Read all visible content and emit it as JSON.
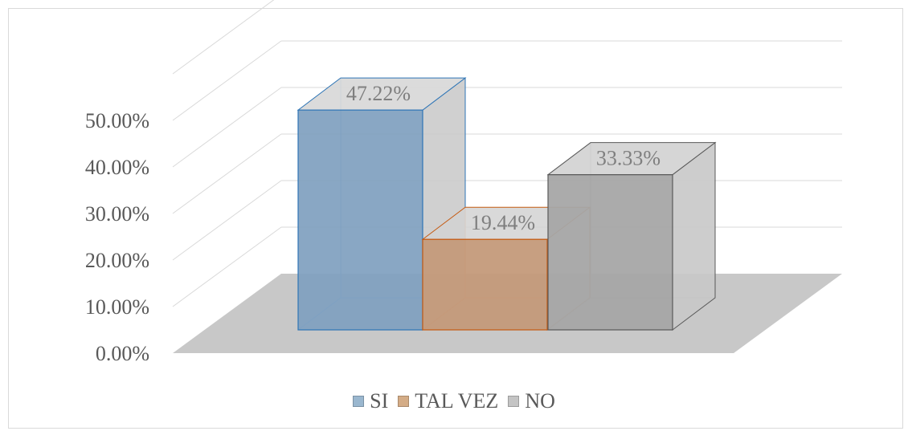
{
  "chart_data": {
    "type": "bar",
    "categories": [
      "SI",
      "TAL VEZ",
      "NO"
    ],
    "values": [
      47.22,
      19.44,
      33.33
    ],
    "data_labels": [
      "47.22%",
      "19.44%",
      "33.33%"
    ],
    "ytick_labels": [
      "0.00%",
      "10.00%",
      "20.00%",
      "30.00%",
      "40.00%",
      "50.00%"
    ],
    "ylim": [
      0,
      50
    ],
    "title": "",
    "xlabel": "",
    "ylabel": "",
    "grid": true,
    "legend_position": "bottom",
    "style": "3d-columns",
    "colors": [
      "#7f9fbf",
      "#c49a7a",
      "#a6a6a6"
    ]
  },
  "legend": {
    "items": [
      {
        "label": "SI",
        "color": "#9ab7cf"
      },
      {
        "label": "TAL VEZ",
        "color": "#d4ac86"
      },
      {
        "label": "NO",
        "color": "#c4c4c4"
      }
    ]
  }
}
